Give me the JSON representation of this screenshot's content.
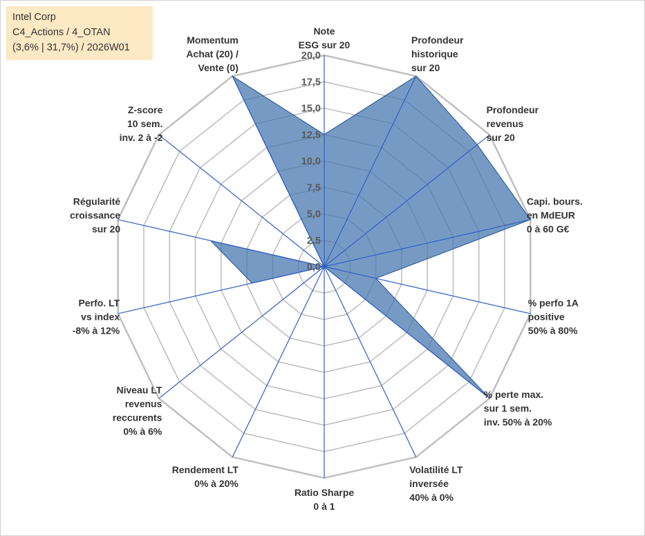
{
  "header": {
    "line1": "Intel Corp",
    "line2": "C4_Actions / 4_OTAN",
    "line3": "(3,6% | 31,7%) / 2026W01"
  },
  "chart_data": {
    "type": "radar",
    "title": "Intel Corp",
    "r_min": 0,
    "r_max": 20,
    "r_step": 2.5,
    "ticks": [
      "0,0",
      "2,5",
      "5,0",
      "7,5",
      "10,0",
      "12,5",
      "15,0",
      "17,5",
      "20,0"
    ],
    "axes": [
      [
        "Note",
        "ESG sur 20"
      ],
      [
        "Profondeur",
        "historique",
        "sur 20"
      ],
      [
        "Profondeur",
        "revenus",
        "sur 20"
      ],
      [
        "Capi. bours.",
        "en MdEUR",
        "0 à 60 G€"
      ],
      [
        "% perfo 1A",
        "positive",
        "50% à 80%"
      ],
      [
        "% perte max.",
        "sur 1 sem.",
        "inv. 50% à 20%"
      ],
      [
        "Volatilité LT",
        "inversée",
        "40% à 0%"
      ],
      [
        "Ratio Sharpe",
        "0 à 1"
      ],
      [
        "Rendement LT",
        "0% à 20%"
      ],
      [
        "Niveau LT",
        "revenus",
        "reccurents",
        "0% à 6%"
      ],
      [
        "Perfo. LT",
        "vs index",
        "-8% à 12%"
      ],
      [
        "Régularité",
        "croissance",
        "sur 20"
      ],
      [
        "Z-score",
        "10 sem.",
        "inv. 2 à -2"
      ],
      [
        "Momentum",
        "Achat (20) /",
        "Vente (0)"
      ]
    ],
    "series": [
      {
        "name": "Intel Corp",
        "values": [
          12.5,
          20,
          18.5,
          20,
          5,
          20,
          0,
          0,
          0,
          0,
          7,
          11,
          0,
          20
        ]
      }
    ],
    "colors": {
      "fill": "#4a78b0",
      "line": "#2e5f9e",
      "grid": "#bfbfbf",
      "spoke": "#2f5fc4"
    }
  }
}
